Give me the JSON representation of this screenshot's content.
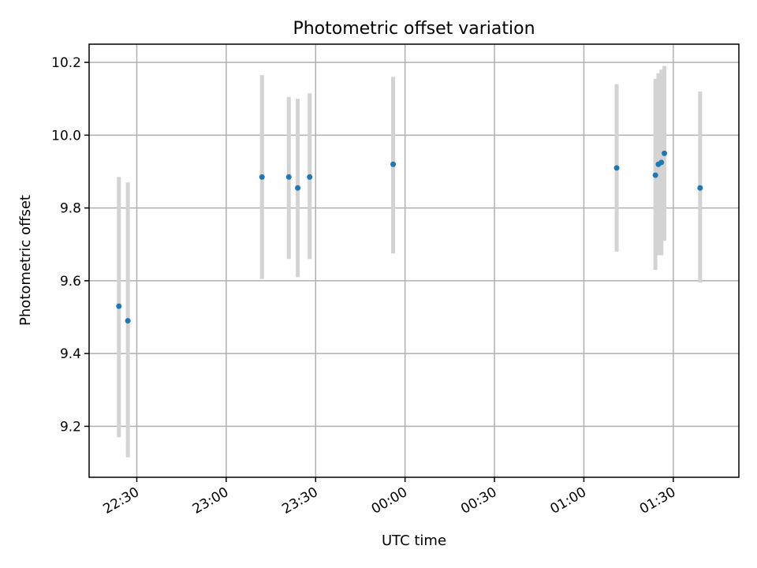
{
  "chart_data": {
    "type": "scatter",
    "title": "Photometric offset variation",
    "xlabel": "UTC time",
    "ylabel": "Photometric offset",
    "grid": true,
    "x_axis": {
      "type": "time",
      "range": [
        "22:14",
        "01:52"
      ],
      "ticks": [
        "22:30",
        "23:00",
        "23:30",
        "00:00",
        "00:30",
        "01:00",
        "01:30"
      ]
    },
    "y_axis": {
      "range": [
        9.06,
        10.25
      ],
      "ticks": [
        "9.2",
        "9.4",
        "9.6",
        "9.8",
        "10.0",
        "10.2"
      ]
    },
    "colors": {
      "points": "#1f77b4",
      "error_bars": "#d3d3d3"
    },
    "points": [
      {
        "time": "22:24",
        "y": 9.53,
        "ylow": 9.17,
        "yhigh": 9.885
      },
      {
        "time": "22:27",
        "y": 9.49,
        "ylow": 9.115,
        "yhigh": 9.87
      },
      {
        "time": "23:12",
        "y": 9.885,
        "ylow": 9.605,
        "yhigh": 10.165
      },
      {
        "time": "23:21",
        "y": 9.885,
        "ylow": 9.66,
        "yhigh": 10.105
      },
      {
        "time": "23:24",
        "y": 9.855,
        "ylow": 9.61,
        "yhigh": 10.1
      },
      {
        "time": "23:28",
        "y": 9.885,
        "ylow": 9.66,
        "yhigh": 10.115
      },
      {
        "time": "23:56",
        "y": 9.92,
        "ylow": 9.675,
        "yhigh": 10.16
      },
      {
        "time": "01:11",
        "y": 9.91,
        "ylow": 9.68,
        "yhigh": 10.14
      },
      {
        "time": "01:24",
        "y": 9.89,
        "ylow": 9.63,
        "yhigh": 10.155
      },
      {
        "time": "01:25",
        "y": 9.92,
        "ylow": 9.67,
        "yhigh": 10.17
      },
      {
        "time": "01:26",
        "y": 9.925,
        "ylow": 9.67,
        "yhigh": 10.18
      },
      {
        "time": "01:27",
        "y": 9.95,
        "ylow": 9.71,
        "yhigh": 10.19
      },
      {
        "time": "01:39",
        "y": 9.855,
        "ylow": 9.595,
        "yhigh": 10.12
      }
    ]
  }
}
